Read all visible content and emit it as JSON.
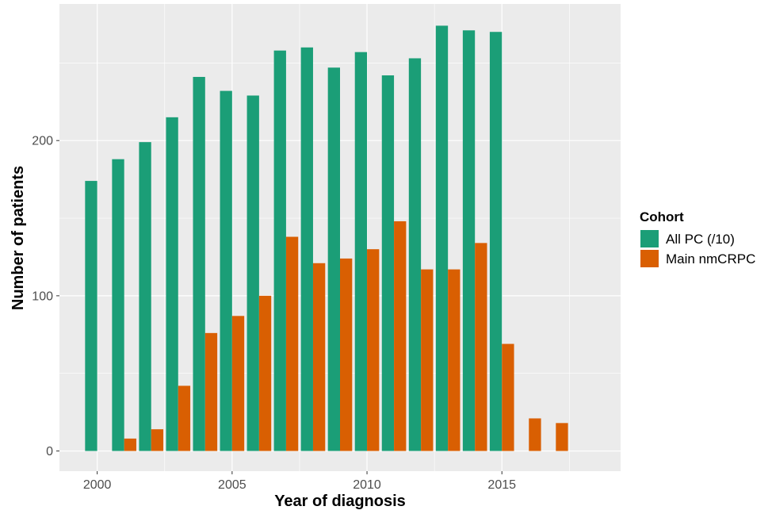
{
  "chart_data": {
    "type": "bar",
    "xlabel": "Year of diagnosis",
    "ylabel": "Number of patients",
    "x_ticks": [
      "2000",
      "2005",
      "2010",
      "2015"
    ],
    "y_ticks": [
      "0",
      "100",
      "200"
    ],
    "xlim": [
      1998.6,
      2019.4
    ],
    "ylim": [
      -13,
      288
    ],
    "grid": true,
    "legend": {
      "title": "Cohort",
      "placement": "right"
    },
    "series": [
      {
        "name": "All PC (/10)",
        "color": "#1b9e77",
        "x": [
          2000,
          2001,
          2002,
          2003,
          2004,
          2005,
          2006,
          2007,
          2008,
          2009,
          2010,
          2011,
          2012,
          2013,
          2014,
          2015
        ],
        "values": [
          174,
          188,
          199,
          215,
          241,
          232,
          229,
          258,
          260,
          247,
          257,
          242,
          253,
          274,
          271,
          270
        ]
      },
      {
        "name": "Main nmCRPC",
        "color": "#d95f02",
        "x": [
          2001,
          2002,
          2003,
          2004,
          2005,
          2006,
          2007,
          2008,
          2009,
          2010,
          2011,
          2012,
          2013,
          2014,
          2015,
          2016,
          2017
        ],
        "values": [
          8,
          14,
          42,
          76,
          87,
          100,
          138,
          121,
          124,
          130,
          148,
          117,
          117,
          134,
          69,
          21,
          18
        ]
      }
    ]
  }
}
